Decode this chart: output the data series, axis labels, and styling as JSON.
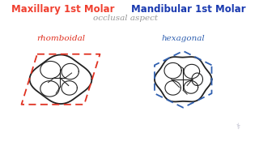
{
  "bg_color": "#ffffff",
  "title_left": "Maxillary 1st Molar",
  "title_right": "Mandibular 1st Molar",
  "subtitle": "occlusal aspect",
  "label_left": "rhomboidal",
  "label_right": "hexagonal",
  "title_left_color": "#f04030",
  "title_right_color": "#1a3ab0",
  "subtitle_color": "#999999",
  "label_left_color": "#e03020",
  "label_right_color": "#3060b0",
  "tooth_color": "#222222",
  "rhombus_color": "#e03020",
  "hex_color": "#3060b0"
}
